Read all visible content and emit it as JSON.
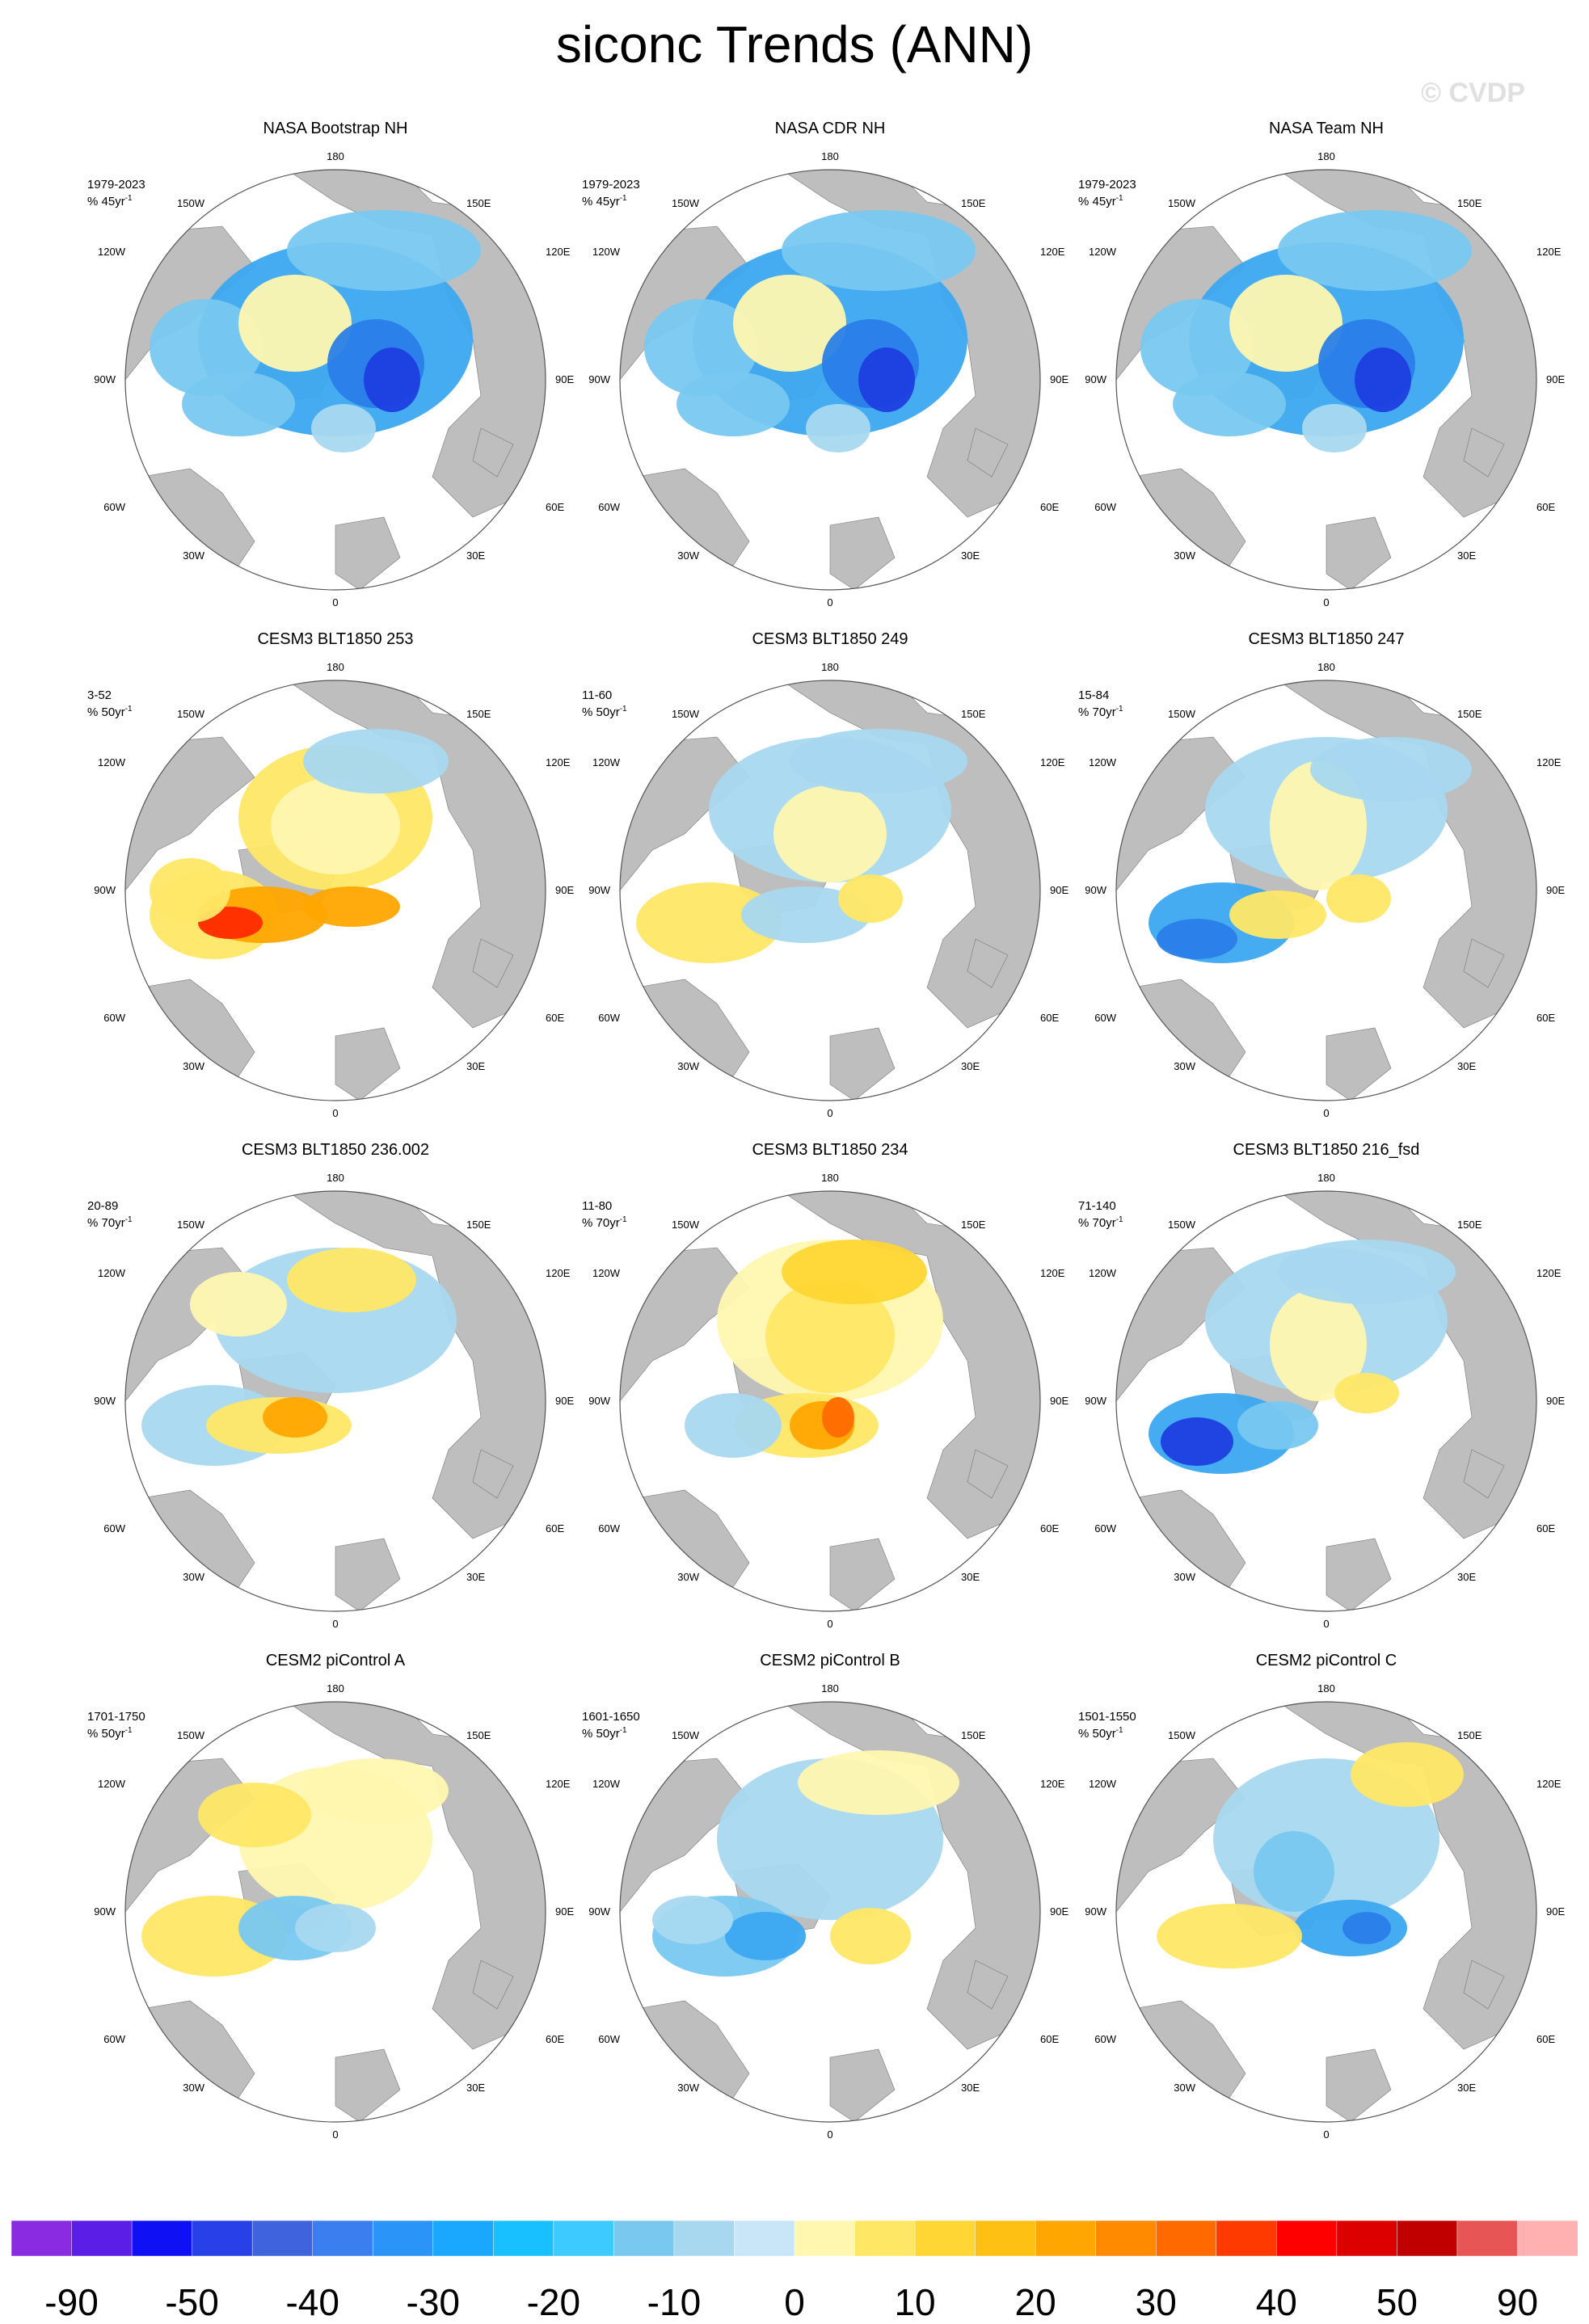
{
  "title": "siconc Trends (ANN)",
  "watermark": "© CVDP",
  "lon_labels": {
    "n180": "180",
    "nw150": "150W",
    "ne150": "150E",
    "w120": "120W",
    "e120": "120E",
    "w90": "90W",
    "e90": "90E",
    "w60": "60W",
    "e60": "60E",
    "w30": "30W",
    "e30": "30E",
    "s0": "0"
  },
  "panels": [
    {
      "title": "NASA Bootstrap NH",
      "period": "1979-2023",
      "units": "% 45yr",
      "pattern": "obs"
    },
    {
      "title": "NASA CDR NH",
      "period": "1979-2023",
      "units": "% 45yr",
      "pattern": "obs"
    },
    {
      "title": "NASA Team NH",
      "period": "1979-2023",
      "units": "% 45yr",
      "pattern": "obs"
    },
    {
      "title": "CESM3 BLT1850 253",
      "period": "3-52",
      "units": "% 50yr",
      "pattern": "warm"
    },
    {
      "title": "CESM3 BLT1850 249",
      "period": "11-60",
      "units": "% 50yr",
      "pattern": "mixed"
    },
    {
      "title": "CESM3 BLT1850 247",
      "period": "15-84",
      "units": "% 70yr",
      "pattern": "cool"
    },
    {
      "title": "CESM3 BLT1850 236.002",
      "period": "20-89",
      "units": "% 70yr",
      "pattern": "mixed-warm"
    },
    {
      "title": "CESM3 BLT1850 234",
      "period": "11-80",
      "units": "% 70yr",
      "pattern": "warm2"
    },
    {
      "title": "CESM3 BLT1850 216_fsd",
      "period": "71-140",
      "units": "% 70yr",
      "pattern": "cool2"
    },
    {
      "title": "CESM2 piControl A",
      "period": "1701-1750",
      "units": "% 50yr",
      "pattern": "yellow"
    },
    {
      "title": "CESM2 piControl B",
      "period": "1601-1650",
      "units": "% 50yr",
      "pattern": "mixed2"
    },
    {
      "title": "CESM2 piControl C",
      "period": "1501-1550",
      "units": "% 50yr",
      "pattern": "mixed3"
    }
  ],
  "colorbar": {
    "colors": [
      "#8a2be2",
      "#5b1ee6",
      "#1010f5",
      "#2840e8",
      "#3e63dc",
      "#3a7ef0",
      "#2a94f8",
      "#1aa8ff",
      "#18c0ff",
      "#3ccaff",
      "#78c8f0",
      "#a8d8f0",
      "#c8e6f8",
      "#fff7b0",
      "#ffe766",
      "#ffd633",
      "#ffc014",
      "#ffa600",
      "#ff8a00",
      "#ff6a00",
      "#ff3a00",
      "#ff0000",
      "#dd0000",
      "#c00000",
      "#e85555",
      "#ffb0b0"
    ],
    "labels": [
      "-90",
      "-50",
      "-40",
      "-30",
      "-20",
      "-10",
      "0",
      "10",
      "20",
      "30",
      "40",
      "50",
      "90"
    ]
  }
}
